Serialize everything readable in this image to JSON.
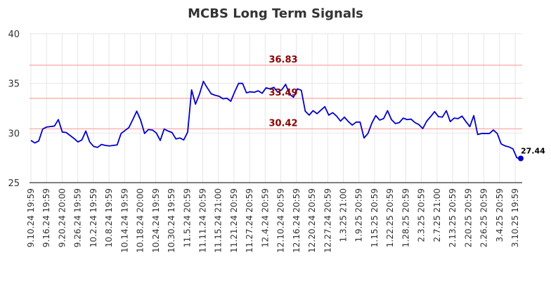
{
  "chart_data": {
    "type": "line",
    "title": "MCBS Long Term Signals",
    "xlabel": "",
    "ylabel": "",
    "ylim": [
      25,
      40
    ],
    "yticks": [
      25,
      30,
      35,
      40
    ],
    "grid": true,
    "x_tick_labels": [
      "9.10.24 19:59",
      "9.16.24 19:59",
      "9.20.24 20:00",
      "9.26.24 19:59",
      "10.2.24 19:59",
      "10.8.24 19:59",
      "10.14.24 19:59",
      "10.18.24 20:00",
      "10.24.24 19:59",
      "10.30.24 19:59",
      "11.5.24 20:59",
      "11.11.24 20:59",
      "11.15.24 21:00",
      "11.21.24 20:59",
      "11.27.24 20:59",
      "12.4.24 20:59",
      "12.10.24 20:59",
      "12.16.24 20:59",
      "12.20.24 20:59",
      "12.27.24 20:59",
      "1.3.25 21:00",
      "1.9.25 20:59",
      "1.15.25 20:59",
      "1.22.25 20:59",
      "1.28.25 20:59",
      "2.3.25 20:59",
      "2.7.25 21:00",
      "2.13.25 20:59",
      "2.20.25 20:59",
      "2.26.25 20:59",
      "3.4.25 20:59",
      "3.10.25 19:59"
    ],
    "levels": [
      {
        "value": 36.83,
        "label": "36.83"
      },
      {
        "value": 33.49,
        "label": "33.49"
      },
      {
        "value": 30.42,
        "label": "30.42"
      }
    ],
    "series": [
      {
        "color": "#0000cc",
        "values": [
          29.25,
          29.0,
          29.2,
          30.4,
          30.6,
          30.65,
          30.7,
          31.35,
          30.1,
          30.05,
          29.75,
          29.45,
          29.1,
          29.3,
          30.2,
          29.1,
          28.65,
          28.55,
          28.85,
          28.75,
          28.7,
          28.75,
          28.8,
          29.95,
          30.25,
          30.55,
          31.35,
          32.2,
          31.3,
          29.95,
          30.35,
          30.3,
          30.0,
          29.25,
          30.4,
          30.2,
          30.05,
          29.4,
          29.5,
          29.3,
          30.1,
          34.35,
          32.9,
          33.9,
          35.2,
          34.55,
          33.95,
          33.8,
          33.7,
          33.45,
          33.5,
          33.2,
          34.15,
          35.0,
          35.0,
          34.05,
          34.15,
          34.1,
          34.25,
          34.0,
          34.55,
          34.45,
          34.6,
          34.1,
          34.35,
          34.9,
          33.9,
          33.6,
          34.45,
          34.3,
          32.2,
          31.8,
          32.25,
          31.95,
          32.3,
          32.65,
          31.8,
          32.05,
          31.7,
          31.2,
          31.6,
          31.15,
          30.8,
          31.1,
          31.1,
          29.5,
          29.95,
          31.0,
          31.75,
          31.3,
          31.45,
          32.25,
          31.35,
          30.95,
          31.05,
          31.5,
          31.35,
          31.4,
          31.05,
          30.85,
          30.45,
          31.2,
          31.65,
          32.15,
          31.65,
          31.6,
          32.25,
          31.15,
          31.5,
          31.45,
          31.7,
          31.15,
          30.65,
          31.75,
          29.85,
          29.95,
          29.95,
          29.95,
          30.3,
          29.95,
          28.9,
          28.7,
          28.6,
          28.4,
          27.5,
          27.44
        ]
      }
    ],
    "last_value_label": "27.44"
  }
}
